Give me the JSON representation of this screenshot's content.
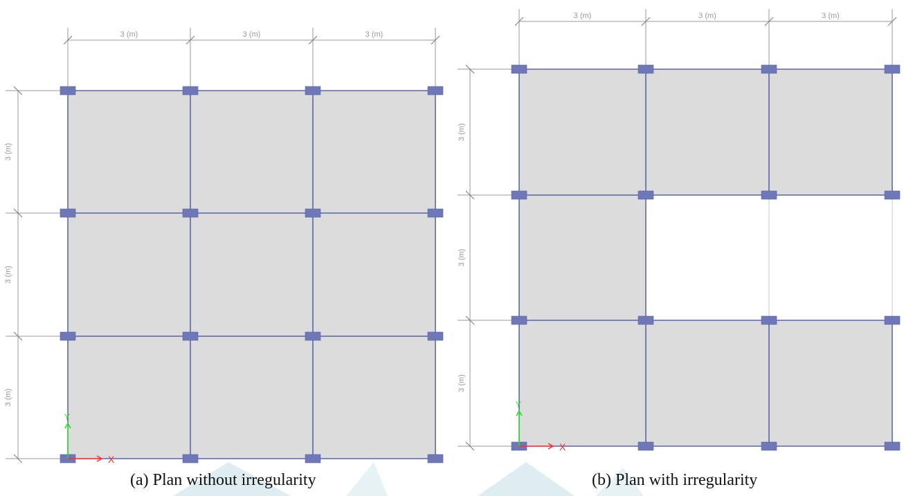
{
  "colors": {
    "slab_fill": "#dcdcdd",
    "beam_line": "#3f4a9c",
    "column_fill": "#6f78b6",
    "dimension_line": "#9a9a9a",
    "grid_line": "#c8c8c8",
    "axis_x": "#ff2a2a",
    "axis_y": "#22dd22",
    "watermark": "#cfe6ec"
  },
  "icons": {
    "column": "blue-square-column",
    "axis": "xy-axis-arrows"
  },
  "plans": [
    {
      "id": "a",
      "caption": "(a)  Plan without irregularity",
      "bays_x": 3,
      "bays_y": 3,
      "bay_span_label": "3 (m)",
      "missing_slab_panels": []
    },
    {
      "id": "b",
      "caption": "(b) Plan with irregularity",
      "bays_x": 3,
      "bays_y": 3,
      "bay_span_label": "3 (m)",
      "missing_slab_panels": [
        [
          1,
          1
        ],
        [
          2,
          1
        ]
      ]
    }
  ],
  "axis_labels": {
    "x": "X",
    "y": "Y"
  }
}
